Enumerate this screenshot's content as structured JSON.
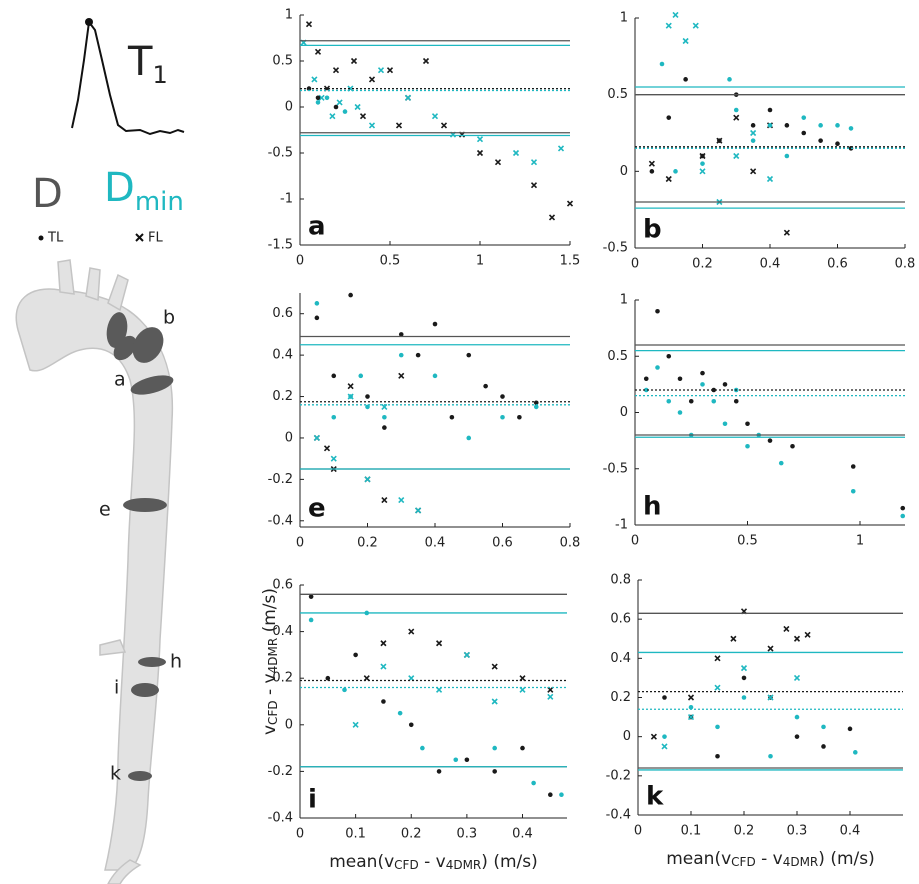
{
  "waveform_label": [
    "T",
    "1"
  ],
  "legend": {
    "d": "D",
    "dmin": [
      "D",
      "min"
    ],
    "tl": "TL",
    "fl": "FL"
  },
  "diagram": {
    "labels": [
      "a",
      "b",
      "e",
      "h",
      "i",
      "k"
    ]
  },
  "chart_data": [
    {
      "type": "scatter",
      "panel_label": "a",
      "xlim": [
        0,
        1.5
      ],
      "ylim": [
        -1.5,
        1
      ],
      "xticks": [
        0,
        0.5,
        1,
        1.5
      ],
      "yticks": [
        -1.5,
        -1,
        -0.5,
        0,
        0.5,
        1
      ],
      "hlines": [
        {
          "value": 0.72,
          "color": "#555555",
          "dash": false
        },
        {
          "value": -0.28,
          "color": "#555555",
          "dash": false
        },
        {
          "value": 0.2,
          "color": "#1a1a1a",
          "dash": true
        },
        {
          "value": 0.67,
          "color": "#1fb8c1",
          "dash": false
        },
        {
          "value": -0.31,
          "color": "#1fb8c1",
          "dash": false
        },
        {
          "value": 0.18,
          "color": "#1fb8c1",
          "dash": true
        }
      ],
      "series": [
        {
          "color": "#1a1a1a",
          "marker": "cross",
          "x": [
            0.05,
            0.1,
            0.15,
            0.2,
            0.3,
            0.35,
            0.4,
            0.5,
            0.55,
            0.6,
            0.7,
            0.8,
            0.9,
            1.0,
            1.1,
            1.3,
            1.4,
            1.5
          ],
          "y": [
            0.9,
            0.6,
            0.2,
            0.4,
            0.5,
            -0.1,
            0.3,
            0.4,
            -0.2,
            0.1,
            0.5,
            -0.2,
            -0.3,
            -0.5,
            -0.6,
            -0.85,
            -1.2,
            -1.05
          ]
        },
        {
          "color": "#1fb8c1",
          "marker": "cross",
          "x": [
            0.02,
            0.08,
            0.12,
            0.18,
            0.22,
            0.28,
            0.32,
            0.4,
            0.45,
            0.6,
            0.75,
            0.85,
            1.0,
            1.2,
            1.3,
            1.45
          ],
          "y": [
            0.7,
            0.3,
            0.1,
            -0.1,
            0.05,
            0.2,
            0.0,
            -0.2,
            0.4,
            0.1,
            -0.1,
            -0.3,
            -0.35,
            -0.5,
            -0.6,
            -0.45
          ]
        },
        {
          "color": "#1a1a1a",
          "marker": "dot",
          "x": [
            0.05,
            0.1,
            0.2
          ],
          "y": [
            0.2,
            0.1,
            0.0
          ]
        },
        {
          "color": "#1fb8c1",
          "marker": "dot",
          "x": [
            0.1,
            0.15,
            0.25
          ],
          "y": [
            0.05,
            0.1,
            -0.05
          ]
        }
      ]
    },
    {
      "type": "scatter",
      "panel_label": "b",
      "xlim": [
        0,
        0.8
      ],
      "ylim": [
        -0.5,
        1
      ],
      "xticks": [
        0,
        0.2,
        0.4,
        0.6,
        0.8
      ],
      "yticks": [
        -0.5,
        0,
        0.5,
        1
      ],
      "hlines": [
        {
          "value": 0.5,
          "color": "#555555",
          "dash": false
        },
        {
          "value": -0.2,
          "color": "#555555",
          "dash": false
        },
        {
          "value": 0.16,
          "color": "#1a1a1a",
          "dash": true
        },
        {
          "value": 0.55,
          "color": "#1fb8c1",
          "dash": false
        },
        {
          "value": -0.24,
          "color": "#1fb8c1",
          "dash": false
        },
        {
          "value": 0.15,
          "color": "#1fb8c1",
          "dash": true
        }
      ],
      "series": [
        {
          "color": "#1a1a1a",
          "marker": "dot",
          "x": [
            0.05,
            0.1,
            0.15,
            0.2,
            0.25,
            0.3,
            0.35,
            0.4,
            0.45,
            0.5,
            0.55,
            0.6,
            0.64
          ],
          "y": [
            0.0,
            0.35,
            0.6,
            0.1,
            0.2,
            0.5,
            0.3,
            0.4,
            0.3,
            0.25,
            0.2,
            0.18,
            0.15
          ]
        },
        {
          "color": "#1a1a1a",
          "marker": "cross",
          "x": [
            0.05,
            0.1,
            0.2,
            0.25,
            0.3,
            0.35,
            0.4,
            0.45
          ],
          "y": [
            0.05,
            -0.05,
            0.1,
            0.2,
            0.35,
            0.0,
            0.3,
            -0.4
          ]
        },
        {
          "color": "#1fb8c1",
          "marker": "dot",
          "x": [
            0.08,
            0.12,
            0.2,
            0.28,
            0.3,
            0.35,
            0.4,
            0.45,
            0.5,
            0.55,
            0.6,
            0.64
          ],
          "y": [
            0.7,
            0.0,
            0.05,
            0.6,
            0.4,
            0.2,
            0.3,
            0.1,
            0.35,
            0.3,
            0.3,
            0.28
          ]
        },
        {
          "color": "#1fb8c1",
          "marker": "cross",
          "x": [
            0.1,
            0.12,
            0.15,
            0.18,
            0.2,
            0.25,
            0.3,
            0.35,
            0.4
          ],
          "y": [
            0.95,
            1.02,
            0.85,
            0.95,
            0.0,
            -0.2,
            0.1,
            0.25,
            -0.05
          ]
        }
      ]
    },
    {
      "type": "scatter",
      "panel_label": "e",
      "xlim": [
        0,
        0.8
      ],
      "ylim": [
        -0.43,
        0.7
      ],
      "xticks": [
        0,
        0.2,
        0.4,
        0.6,
        0.8
      ],
      "yticks": [
        -0.4,
        -0.2,
        0,
        0.2,
        0.4,
        0.6
      ],
      "hlines": [
        {
          "value": 0.49,
          "color": "#555555",
          "dash": false
        },
        {
          "value": -0.15,
          "color": "#555555",
          "dash": false
        },
        {
          "value": 0.175,
          "color": "#1a1a1a",
          "dash": true
        },
        {
          "value": 0.45,
          "color": "#1fb8c1",
          "dash": false
        },
        {
          "value": -0.15,
          "color": "#1fb8c1",
          "dash": false
        },
        {
          "value": 0.16,
          "color": "#1fb8c1",
          "dash": true
        }
      ],
      "series": [
        {
          "color": "#1a1a1a",
          "marker": "dot",
          "x": [
            0.05,
            0.1,
            0.15,
            0.2,
            0.25,
            0.3,
            0.35,
            0.4,
            0.45,
            0.5,
            0.55,
            0.6,
            0.65,
            0.7
          ],
          "y": [
            0.58,
            0.3,
            0.69,
            0.2,
            0.05,
            0.5,
            0.4,
            0.55,
            0.1,
            0.4,
            0.25,
            0.2,
            0.1,
            0.17
          ]
        },
        {
          "color": "#1a1a1a",
          "marker": "cross",
          "x": [
            0.05,
            0.08,
            0.1,
            0.15,
            0.2,
            0.25,
            0.3,
            0.35
          ],
          "y": [
            0.0,
            -0.05,
            -0.15,
            0.25,
            -0.2,
            -0.3,
            0.3,
            -0.35
          ]
        },
        {
          "color": "#1fb8c1",
          "marker": "dot",
          "x": [
            0.05,
            0.1,
            0.15,
            0.18,
            0.2,
            0.25,
            0.3,
            0.4,
            0.5,
            0.6,
            0.7
          ],
          "y": [
            0.65,
            0.1,
            0.2,
            0.3,
            0.15,
            0.1,
            0.4,
            0.3,
            0.0,
            0.1,
            0.15
          ]
        },
        {
          "color": "#1fb8c1",
          "marker": "cross",
          "x": [
            0.05,
            0.1,
            0.15,
            0.2,
            0.25,
            0.3,
            0.35
          ],
          "y": [
            0.0,
            -0.1,
            0.2,
            -0.2,
            0.15,
            -0.3,
            -0.35
          ]
        }
      ]
    },
    {
      "type": "scatter",
      "panel_label": "h",
      "xlim": [
        0,
        1.2
      ],
      "ylim": [
        -1,
        1
      ],
      "xticks": [
        0,
        0.5,
        1
      ],
      "yticks": [
        -1,
        -0.5,
        0,
        0.5,
        1
      ],
      "hlines": [
        {
          "value": 0.6,
          "color": "#555555",
          "dash": false
        },
        {
          "value": -0.2,
          "color": "#555555",
          "dash": false
        },
        {
          "value": 0.2,
          "color": "#1a1a1a",
          "dash": true
        },
        {
          "value": 0.55,
          "color": "#1fb8c1",
          "dash": false
        },
        {
          "value": -0.22,
          "color": "#1fb8c1",
          "dash": false
        },
        {
          "value": 0.15,
          "color": "#1fb8c1",
          "dash": true
        }
      ],
      "series": [
        {
          "color": "#1a1a1a",
          "marker": "dot",
          "x": [
            0.05,
            0.1,
            0.15,
            0.2,
            0.25,
            0.3,
            0.35,
            0.4,
            0.45,
            0.5,
            0.6,
            0.7,
            0.97,
            1.19
          ],
          "y": [
            0.3,
            0.9,
            0.5,
            0.3,
            0.1,
            0.35,
            0.2,
            0.25,
            0.1,
            -0.1,
            -0.25,
            -0.3,
            -0.48,
            -0.85
          ]
        },
        {
          "color": "#1fb8c1",
          "marker": "dot",
          "x": [
            0.05,
            0.1,
            0.15,
            0.2,
            0.25,
            0.3,
            0.35,
            0.4,
            0.45,
            0.5,
            0.55,
            0.65,
            0.97,
            1.19
          ],
          "y": [
            0.2,
            0.4,
            0.1,
            0.0,
            -0.2,
            0.25,
            0.1,
            -0.1,
            0.2,
            -0.3,
            -0.2,
            -0.45,
            -0.7,
            -0.92
          ]
        }
      ]
    },
    {
      "type": "scatter",
      "panel_label": "i",
      "xlim": [
        0,
        0.48
      ],
      "ylim": [
        -0.4,
        0.6
      ],
      "xticks": [
        0,
        0.1,
        0.2,
        0.3,
        0.4
      ],
      "yticks": [
        -0.4,
        -0.2,
        0,
        0.2,
        0.4,
        0.6
      ],
      "ylabel": [
        "v",
        "CFD",
        " - v",
        "4DMR",
        " (m/s)"
      ],
      "xlabel": [
        "mean(v",
        "CFD",
        " - v",
        "4DMR",
        ") (m/s)"
      ],
      "hlines": [
        {
          "value": 0.56,
          "color": "#555555",
          "dash": false
        },
        {
          "value": -0.18,
          "color": "#555555",
          "dash": false
        },
        {
          "value": 0.19,
          "color": "#1a1a1a",
          "dash": true
        },
        {
          "value": 0.48,
          "color": "#1fb8c1",
          "dash": false
        },
        {
          "value": -0.18,
          "color": "#1fb8c1",
          "dash": false
        },
        {
          "value": 0.16,
          "color": "#1fb8c1",
          "dash": true
        }
      ],
      "series": [
        {
          "color": "#1a1a1a",
          "marker": "dot",
          "x": [
            0.02,
            0.05,
            0.1,
            0.15,
            0.2,
            0.25,
            0.3,
            0.35,
            0.4,
            0.45
          ],
          "y": [
            0.55,
            0.2,
            0.3,
            0.1,
            0.0,
            -0.2,
            -0.15,
            -0.2,
            -0.1,
            -0.3
          ]
        },
        {
          "color": "#1a1a1a",
          "marker": "cross",
          "x": [
            0.12,
            0.15,
            0.2,
            0.25,
            0.3,
            0.35,
            0.4,
            0.45
          ],
          "y": [
            0.2,
            0.35,
            0.4,
            0.35,
            0.3,
            0.25,
            0.2,
            0.15
          ]
        },
        {
          "color": "#1fb8c1",
          "marker": "dot",
          "x": [
            0.02,
            0.08,
            0.12,
            0.18,
            0.22,
            0.28,
            0.35,
            0.42,
            0.47
          ],
          "y": [
            0.45,
            0.15,
            0.48,
            0.05,
            -0.1,
            -0.15,
            -0.1,
            -0.25,
            -0.3
          ]
        },
        {
          "color": "#1fb8c1",
          "marker": "cross",
          "x": [
            0.1,
            0.15,
            0.2,
            0.25,
            0.3,
            0.35,
            0.4,
            0.45
          ],
          "y": [
            0.0,
            0.25,
            0.2,
            0.15,
            0.3,
            0.1,
            0.15,
            0.12
          ]
        }
      ]
    },
    {
      "type": "scatter",
      "panel_label": "k",
      "xlim": [
        0,
        0.5
      ],
      "ylim": [
        -0.4,
        0.8
      ],
      "xticks": [
        0,
        0.1,
        0.2,
        0.3,
        0.4
      ],
      "yticks": [
        -0.4,
        -0.2,
        0,
        0.2,
        0.4,
        0.6,
        0.8
      ],
      "xlabel": [
        "mean(v",
        "CFD",
        " - v",
        "4DMR",
        ") (m/s)"
      ],
      "hlines": [
        {
          "value": 0.63,
          "color": "#555555",
          "dash": false
        },
        {
          "value": -0.16,
          "color": "#555555",
          "dash": false
        },
        {
          "value": 0.23,
          "color": "#1a1a1a",
          "dash": true
        },
        {
          "value": 0.43,
          "color": "#1fb8c1",
          "dash": false
        },
        {
          "value": -0.17,
          "color": "#1fb8c1",
          "dash": false
        },
        {
          "value": 0.14,
          "color": "#1fb8c1",
          "dash": true
        }
      ],
      "series": [
        {
          "color": "#1a1a1a",
          "marker": "cross",
          "x": [
            0.03,
            0.1,
            0.15,
            0.18,
            0.2,
            0.25,
            0.28,
            0.3,
            0.32
          ],
          "y": [
            0.0,
            0.2,
            0.4,
            0.5,
            0.64,
            0.45,
            0.55,
            0.5,
            0.52
          ]
        },
        {
          "color": "#1a1a1a",
          "marker": "dot",
          "x": [
            0.05,
            0.1,
            0.15,
            0.2,
            0.25,
            0.3,
            0.35,
            0.4
          ],
          "y": [
            0.2,
            0.1,
            -0.1,
            0.3,
            0.2,
            0.0,
            -0.05,
            0.04
          ]
        },
        {
          "color": "#1fb8c1",
          "marker": "cross",
          "x": [
            0.05,
            0.1,
            0.15,
            0.2,
            0.25,
            0.3
          ],
          "y": [
            -0.05,
            0.1,
            0.25,
            0.35,
            0.2,
            0.3
          ]
        },
        {
          "color": "#1fb8c1",
          "marker": "dot",
          "x": [
            0.05,
            0.1,
            0.15,
            0.2,
            0.25,
            0.3,
            0.35,
            0.41
          ],
          "y": [
            0.0,
            0.15,
            0.05,
            0.2,
            -0.1,
            0.1,
            0.05,
            -0.08
          ]
        }
      ]
    }
  ]
}
